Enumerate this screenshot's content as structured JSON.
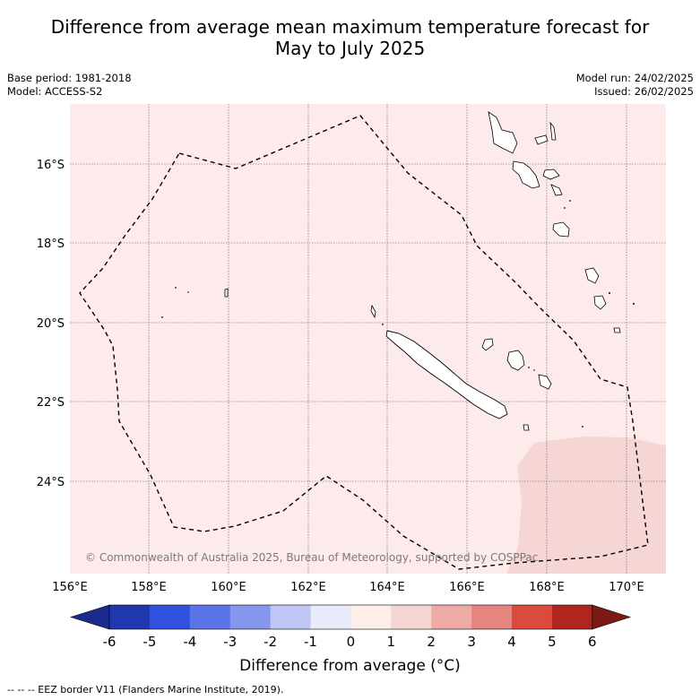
{
  "title_line1": "Difference from average mean maximum temperature forecast for",
  "title_line2": "May to July 2025",
  "meta": {
    "base_period": "Base period: 1981-2018",
    "model": "Model: ACCESS-S2",
    "model_run": "Model run: 24/02/2025",
    "issued": "Issued: 26/02/2025"
  },
  "map": {
    "lon_ticks": [
      "156°E",
      "158°E",
      "160°E",
      "162°E",
      "164°E",
      "166°E",
      "168°E",
      "170°E"
    ],
    "lat_ticks": [
      "16°S",
      "18°S",
      "20°S",
      "22°S",
      "24°S"
    ],
    "background_anomaly_color": "#fcebea",
    "warmer_patch_color": "#f5d6d4",
    "copyright": "© Commonwealth of Australia 2025, Bureau of Meteorology, supported by COSPPac"
  },
  "colorbar": {
    "labels": [
      "-6",
      "-5",
      "-4",
      "-3",
      "-2",
      "-1",
      "0",
      "1",
      "2",
      "3",
      "4",
      "5",
      "6"
    ],
    "colors": [
      "#1c2a8c",
      "#2137b0",
      "#3050e0",
      "#5a74e8",
      "#8597ec",
      "#bfc6f3",
      "#e8ecfa",
      "#fdeeea",
      "#f5d5d2",
      "#eeaaa5",
      "#e6857e",
      "#dc4a3e",
      "#b0261f",
      "#7c1a14"
    ],
    "title": "Difference from average (°C)"
  },
  "footer": "-- -- -- EEZ border V11 (Flanders Marine Institute, 2019)."
}
